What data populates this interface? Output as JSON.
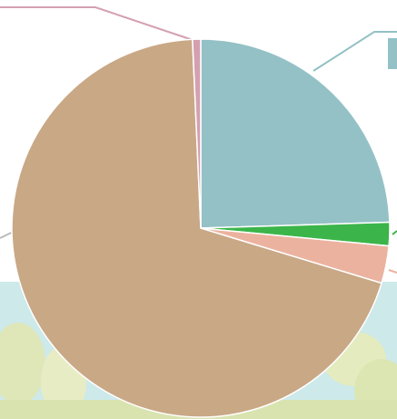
{
  "chart_data": {
    "type": "pie",
    "categories": [
      null,
      null,
      null,
      null,
      null
    ],
    "values": [
      24.5,
      2,
      3.2,
      69.6,
      0.7
    ],
    "colors": [
      "#93c1c6",
      "#3bb54a",
      "#ebb39f",
      "#c9a886",
      "#d4a0b0"
    ]
  }
}
